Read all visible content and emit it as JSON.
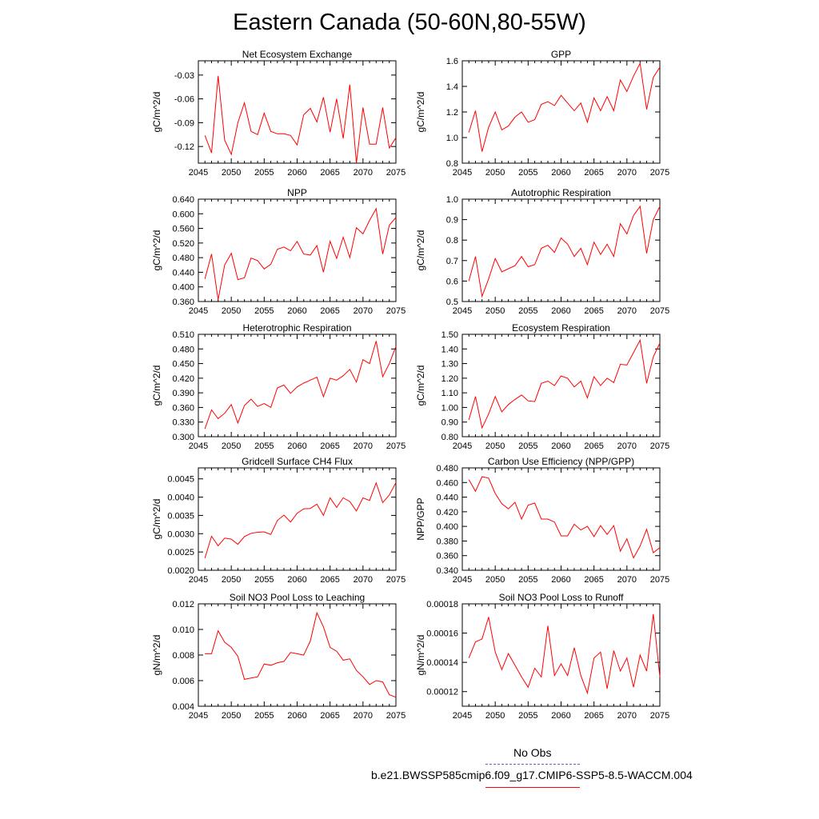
{
  "title": "Eastern Canada (50-60N,80-55W)",
  "colors": {
    "series": "#ff0000",
    "obs": "#6060d0",
    "axis": "#000000"
  },
  "legend": {
    "obs_label": "No Obs",
    "case_label": "b.e21.BWSSP585cmip6.f09_g17.CMIP6-SSP5-8.5-WACCM.004"
  },
  "chart_data": [
    {
      "type": "line",
      "title": "Net Ecosystem Exchange",
      "xlabel": "",
      "ylabel": "gC/m^2/d",
      "xlim": [
        2045,
        2075
      ],
      "ylim": [
        -0.141,
        -0.012
      ],
      "xticks": [
        2045,
        2050,
        2055,
        2060,
        2065,
        2070,
        2075
      ],
      "yticks": [
        -0.12,
        -0.09,
        -0.06,
        -0.03
      ],
      "ytick_labels": [
        "-0.12",
        "-0.09",
        "-0.06",
        "-0.03"
      ],
      "x": [
        2046,
        2047,
        2048,
        2049,
        2050,
        2051,
        2052,
        2053,
        2054,
        2055,
        2056,
        2057,
        2058,
        2059,
        2060,
        2061,
        2062,
        2063,
        2064,
        2065,
        2066,
        2067,
        2068,
        2069,
        2070,
        2071,
        2072,
        2073,
        2074,
        2075
      ],
      "values": [
        -0.106,
        -0.128,
        -0.031,
        -0.112,
        -0.13,
        -0.09,
        -0.065,
        -0.101,
        -0.105,
        -0.078,
        -0.101,
        -0.104,
        -0.104,
        -0.106,
        -0.118,
        -0.08,
        -0.072,
        -0.089,
        -0.058,
        -0.102,
        -0.06,
        -0.11,
        -0.042,
        -0.141,
        -0.071,
        -0.117,
        -0.117,
        -0.071,
        -0.122,
        -0.109
      ]
    },
    {
      "type": "line",
      "title": "GPP",
      "xlabel": "",
      "ylabel": "gC/m^2/d",
      "xlim": [
        2045,
        2075
      ],
      "ylim": [
        0.8,
        1.6
      ],
      "xticks": [
        2045,
        2050,
        2055,
        2060,
        2065,
        2070,
        2075
      ],
      "yticks": [
        0.8,
        1.0,
        1.2,
        1.4,
        1.6
      ],
      "ytick_labels": [
        "0.8",
        "1.0",
        "1.2",
        "1.4",
        "1.6"
      ],
      "x": [
        2046,
        2047,
        2048,
        2049,
        2050,
        2051,
        2052,
        2053,
        2054,
        2055,
        2056,
        2057,
        2058,
        2059,
        2060,
        2061,
        2062,
        2063,
        2064,
        2065,
        2066,
        2067,
        2068,
        2069,
        2070,
        2071,
        2072,
        2073,
        2074,
        2075
      ],
      "values": [
        1.04,
        1.21,
        0.89,
        1.08,
        1.2,
        1.06,
        1.09,
        1.16,
        1.2,
        1.12,
        1.14,
        1.26,
        1.28,
        1.25,
        1.33,
        1.27,
        1.21,
        1.27,
        1.12,
        1.31,
        1.21,
        1.32,
        1.21,
        1.45,
        1.36,
        1.48,
        1.58,
        1.22,
        1.47,
        1.55
      ]
    },
    {
      "type": "line",
      "title": "NPP",
      "xlabel": "",
      "ylabel": "gC/m^2/d",
      "xlim": [
        2045,
        2075
      ],
      "ylim": [
        0.36,
        0.64
      ],
      "xticks": [
        2045,
        2050,
        2055,
        2060,
        2065,
        2070,
        2075
      ],
      "yticks": [
        0.36,
        0.4,
        0.44,
        0.48,
        0.52,
        0.56,
        0.6,
        0.64
      ],
      "ytick_labels": [
        "0.360",
        "0.400",
        "0.440",
        "0.480",
        "0.520",
        "0.560",
        "0.600",
        "0.640"
      ],
      "x": [
        2046,
        2047,
        2048,
        2049,
        2050,
        2051,
        2052,
        2053,
        2054,
        2055,
        2056,
        2057,
        2058,
        2059,
        2060,
        2061,
        2062,
        2063,
        2064,
        2065,
        2066,
        2067,
        2068,
        2069,
        2070,
        2071,
        2072,
        2073,
        2074,
        2075
      ],
      "values": [
        0.422,
        0.49,
        0.365,
        0.46,
        0.492,
        0.42,
        0.425,
        0.479,
        0.472,
        0.449,
        0.462,
        0.503,
        0.509,
        0.499,
        0.524,
        0.49,
        0.487,
        0.513,
        0.44,
        0.525,
        0.478,
        0.536,
        0.48,
        0.562,
        0.545,
        0.582,
        0.614,
        0.49,
        0.569,
        0.59
      ]
    },
    {
      "type": "line",
      "title": "Autotrophic Respiration",
      "xlabel": "",
      "ylabel": "gC/m^2/d",
      "xlim": [
        2045,
        2075
      ],
      "ylim": [
        0.5,
        1.0
      ],
      "xticks": [
        2045,
        2050,
        2055,
        2060,
        2065,
        2070,
        2075
      ],
      "yticks": [
        0.5,
        0.6,
        0.7,
        0.8,
        0.9,
        1.0
      ],
      "ytick_labels": [
        "0.5",
        "0.6",
        "0.7",
        "0.8",
        "0.9",
        "1.0"
      ],
      "x": [
        2046,
        2047,
        2048,
        2049,
        2050,
        2051,
        2052,
        2053,
        2054,
        2055,
        2056,
        2057,
        2058,
        2059,
        2060,
        2061,
        2062,
        2063,
        2064,
        2065,
        2066,
        2067,
        2068,
        2069,
        2070,
        2071,
        2072,
        2073,
        2074,
        2075
      ],
      "values": [
        0.6,
        0.72,
        0.525,
        0.61,
        0.71,
        0.645,
        0.66,
        0.675,
        0.72,
        0.67,
        0.68,
        0.76,
        0.775,
        0.74,
        0.81,
        0.78,
        0.72,
        0.76,
        0.68,
        0.79,
        0.73,
        0.78,
        0.72,
        0.88,
        0.83,
        0.92,
        0.965,
        0.735,
        0.9,
        0.965
      ]
    },
    {
      "type": "line",
      "title": "Heterotrophic Respiration",
      "xlabel": "",
      "ylabel": "gC/m^2/d",
      "xlim": [
        2045,
        2075
      ],
      "ylim": [
        0.3,
        0.51
      ],
      "xticks": [
        2045,
        2050,
        2055,
        2060,
        2065,
        2070,
        2075
      ],
      "yticks": [
        0.3,
        0.33,
        0.36,
        0.39,
        0.42,
        0.45,
        0.48,
        0.51
      ],
      "ytick_labels": [
        "0.300",
        "0.330",
        "0.360",
        "0.390",
        "0.420",
        "0.450",
        "0.480",
        "0.510"
      ],
      "x": [
        2046,
        2047,
        2048,
        2049,
        2050,
        2051,
        2052,
        2053,
        2054,
        2055,
        2056,
        2057,
        2058,
        2059,
        2060,
        2061,
        2062,
        2063,
        2064,
        2065,
        2066,
        2067,
        2068,
        2069,
        2070,
        2071,
        2072,
        2073,
        2074,
        2075
      ],
      "values": [
        0.316,
        0.355,
        0.337,
        0.348,
        0.366,
        0.328,
        0.364,
        0.377,
        0.362,
        0.368,
        0.36,
        0.4,
        0.406,
        0.389,
        0.402,
        0.41,
        0.416,
        0.422,
        0.382,
        0.42,
        0.416,
        0.425,
        0.438,
        0.412,
        0.458,
        0.45,
        0.496,
        0.423,
        0.45,
        0.485
      ]
    },
    {
      "type": "line",
      "title": "Ecosystem Respiration",
      "xlabel": "",
      "ylabel": "gC/m^2/d",
      "xlim": [
        2045,
        2075
      ],
      "ylim": [
        0.8,
        1.5
      ],
      "xticks": [
        2045,
        2050,
        2055,
        2060,
        2065,
        2070,
        2075
      ],
      "yticks": [
        0.8,
        0.9,
        1.0,
        1.1,
        1.2,
        1.3,
        1.4,
        1.5
      ],
      "ytick_labels": [
        "0.80",
        "0.90",
        "1.00",
        "1.10",
        "1.20",
        "1.30",
        "1.40",
        "1.50"
      ],
      "x": [
        2046,
        2047,
        2048,
        2049,
        2050,
        2051,
        2052,
        2053,
        2054,
        2055,
        2056,
        2057,
        2058,
        2059,
        2060,
        2061,
        2062,
        2063,
        2064,
        2065,
        2066,
        2067,
        2068,
        2069,
        2070,
        2071,
        2072,
        2073,
        2074,
        2075
      ],
      "values": [
        0.915,
        1.075,
        0.86,
        0.955,
        1.075,
        0.97,
        1.02,
        1.055,
        1.085,
        1.045,
        1.04,
        1.165,
        1.18,
        1.15,
        1.215,
        1.2,
        1.14,
        1.18,
        1.065,
        1.21,
        1.15,
        1.2,
        1.17,
        1.295,
        1.29,
        1.375,
        1.46,
        1.165,
        1.345,
        1.44
      ]
    },
    {
      "type": "line",
      "title": "Gridcell Surface CH4 Flux",
      "xlabel": "",
      "ylabel": "gC/m^2/d",
      "xlim": [
        2045,
        2075
      ],
      "ylim": [
        0.002,
        0.0048
      ],
      "xticks": [
        2045,
        2050,
        2055,
        2060,
        2065,
        2070,
        2075
      ],
      "yticks": [
        0.002,
        0.0025,
        0.003,
        0.0035,
        0.004,
        0.0045
      ],
      "ytick_labels": [
        "0.0020",
        "0.0025",
        "0.0030",
        "0.0035",
        "0.0040",
        "0.0045"
      ],
      "x": [
        2046,
        2047,
        2048,
        2049,
        2050,
        2051,
        2052,
        2053,
        2054,
        2055,
        2056,
        2057,
        2058,
        2059,
        2060,
        2061,
        2062,
        2063,
        2064,
        2065,
        2066,
        2067,
        2068,
        2069,
        2070,
        2071,
        2072,
        2073,
        2074,
        2075
      ],
      "values": [
        0.00233,
        0.00293,
        0.00267,
        0.00288,
        0.00285,
        0.00271,
        0.00292,
        0.00301,
        0.00304,
        0.00305,
        0.00298,
        0.00336,
        0.00351,
        0.00332,
        0.00356,
        0.00368,
        0.00369,
        0.00381,
        0.0035,
        0.00398,
        0.00372,
        0.00398,
        0.00388,
        0.00362,
        0.00398,
        0.00391,
        0.00439,
        0.00385,
        0.00406,
        0.0044
      ]
    },
    {
      "type": "line",
      "title": "Carbon Use Efficiency (NPP/GPP)",
      "xlabel": "",
      "ylabel": "NPP/GPP",
      "xlim": [
        2045,
        2075
      ],
      "ylim": [
        0.34,
        0.48
      ],
      "xticks": [
        2045,
        2050,
        2055,
        2060,
        2065,
        2070,
        2075
      ],
      "yticks": [
        0.34,
        0.36,
        0.38,
        0.4,
        0.42,
        0.44,
        0.46,
        0.48
      ],
      "ytick_labels": [
        "0.340",
        "0.360",
        "0.380",
        "0.400",
        "0.420",
        "0.440",
        "0.460",
        "0.480"
      ],
      "x": [
        2046,
        2047,
        2048,
        2049,
        2050,
        2051,
        2052,
        2053,
        2054,
        2055,
        2056,
        2057,
        2058,
        2059,
        2060,
        2061,
        2062,
        2063,
        2064,
        2065,
        2066,
        2067,
        2068,
        2069,
        2070,
        2071,
        2072,
        2073,
        2074,
        2075
      ],
      "values": [
        0.464,
        0.448,
        0.468,
        0.466,
        0.445,
        0.431,
        0.424,
        0.433,
        0.41,
        0.429,
        0.432,
        0.41,
        0.41,
        0.406,
        0.387,
        0.387,
        0.403,
        0.395,
        0.4,
        0.386,
        0.401,
        0.389,
        0.401,
        0.366,
        0.383,
        0.357,
        0.373,
        0.396,
        0.364,
        0.371
      ]
    },
    {
      "type": "line",
      "title": "Soil NO3 Pool Loss to Leaching",
      "xlabel": "",
      "ylabel": "gN/m^2/d",
      "xlim": [
        2045,
        2075
      ],
      "ylim": [
        0.004,
        0.012
      ],
      "xticks": [
        2045,
        2050,
        2055,
        2060,
        2065,
        2070,
        2075
      ],
      "yticks": [
        0.004,
        0.006,
        0.008,
        0.01,
        0.012
      ],
      "ytick_labels": [
        "0.004",
        "0.006",
        "0.008",
        "0.010",
        "0.012"
      ],
      "x": [
        2046,
        2047,
        2048,
        2049,
        2050,
        2051,
        2052,
        2053,
        2054,
        2055,
        2056,
        2057,
        2058,
        2059,
        2060,
        2061,
        2062,
        2063,
        2064,
        2065,
        2066,
        2067,
        2068,
        2069,
        2070,
        2071,
        2072,
        2073,
        2074,
        2075
      ],
      "values": [
        0.0081,
        0.0081,
        0.0099,
        0.009,
        0.0086,
        0.0079,
        0.0061,
        0.0062,
        0.0063,
        0.0073,
        0.0072,
        0.0074,
        0.0075,
        0.0082,
        0.0081,
        0.008,
        0.0091,
        0.0113,
        0.0102,
        0.0086,
        0.0083,
        0.0076,
        0.0077,
        0.0068,
        0.0063,
        0.0057,
        0.006,
        0.0059,
        0.0049,
        0.0047
      ]
    },
    {
      "type": "line",
      "title": "Soil NO3 Pool Loss to Runoff",
      "xlabel": "",
      "ylabel": "gN/m^2/d",
      "xlim": [
        2045,
        2075
      ],
      "ylim": [
        0.00011,
        0.00018
      ],
      "xticks": [
        2045,
        2050,
        2055,
        2060,
        2065,
        2070,
        2075
      ],
      "yticks": [
        0.00012,
        0.00014,
        0.00016,
        0.00018
      ],
      "ytick_labels": [
        "0.00012",
        "0.00014",
        "0.00016",
        "0.00018"
      ],
      "x": [
        2046,
        2047,
        2048,
        2049,
        2050,
        2051,
        2052,
        2053,
        2054,
        2055,
        2056,
        2057,
        2058,
        2059,
        2060,
        2061,
        2062,
        2063,
        2064,
        2065,
        2066,
        2067,
        2068,
        2069,
        2070,
        2071,
        2072,
        2073,
        2074,
        2075
      ],
      "values": [
        0.000143,
        0.000154,
        0.000156,
        0.000171,
        0.000147,
        0.000135,
        0.000146,
        0.000138,
        0.00013,
        0.000123,
        0.000136,
        0.00013,
        0.000165,
        0.000131,
        0.000139,
        0.000131,
        0.00015,
        0.000131,
        0.000119,
        0.000143,
        0.000147,
        0.000122,
        0.000148,
        0.000134,
        0.000143,
        0.000123,
        0.000145,
        0.000134,
        0.000173,
        0.00013
      ]
    }
  ]
}
